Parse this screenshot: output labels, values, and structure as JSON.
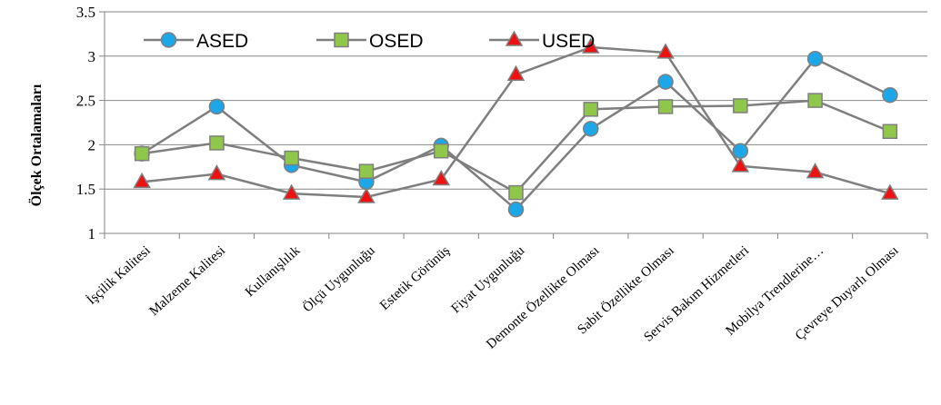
{
  "chart_data": {
    "type": "line",
    "ylabel": "Ölçek Ortalamaları",
    "xlabel": "",
    "ylim": [
      1,
      3.5
    ],
    "yticks": [
      1,
      1.5,
      2,
      2.5,
      3,
      3.5
    ],
    "ytick_labels": [
      "1",
      "1.5",
      "2",
      "2.5",
      "3",
      "3.5"
    ],
    "grid": true,
    "legend_position": "top-left",
    "categories": [
      "İşçilik Kalitesi",
      "Malzeme Kalitesi",
      "Kullanışlılık",
      "Ölçü Uygunluğu",
      "Estetik Görünüş",
      "Fiyat Uygunluğu",
      "Demonte Özellikte Olması",
      "Sabit Özellikte Olması",
      "Servis Bakım Hizmetleri",
      "Mobilya Trendlerine…",
      "Çevreye Duyarlı Olması"
    ],
    "series": [
      {
        "name": "ASED",
        "marker": "circle",
        "color": "#1ea7e8",
        "values": [
          1.9,
          2.43,
          1.77,
          1.58,
          1.99,
          1.27,
          2.18,
          2.71,
          1.93,
          2.97,
          2.56
        ]
      },
      {
        "name": "OSED",
        "marker": "square",
        "color": "#8fc74a",
        "values": [
          1.9,
          2.02,
          1.85,
          1.7,
          1.93,
          1.46,
          2.4,
          2.43,
          2.44,
          2.5,
          2.15
        ]
      },
      {
        "name": "USED",
        "marker": "triangle",
        "color": "#ee1111",
        "values": [
          1.58,
          1.67,
          1.45,
          1.41,
          1.61,
          2.79,
          3.1,
          3.04,
          1.76,
          1.69,
          1.45
        ]
      }
    ],
    "line_color": "#7f7f7f"
  }
}
